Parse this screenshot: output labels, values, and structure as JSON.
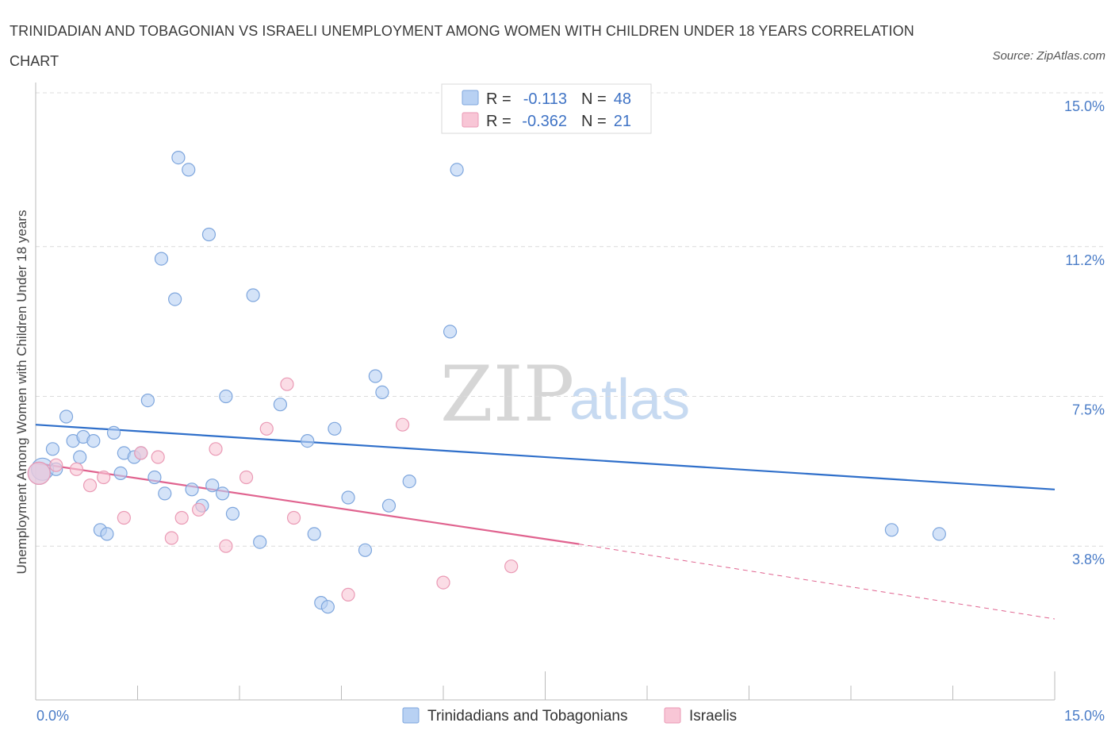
{
  "title": "TRINIDADIAN AND TOBAGONIAN VS ISRAELI UNEMPLOYMENT AMONG WOMEN WITH CHILDREN UNDER 18 YEARS CORRELATION CHART",
  "source": "Source: ZipAtlas.com",
  "watermark": {
    "zip": "ZIP",
    "atlas": "atlas"
  },
  "colors": {
    "blue_fill": "#b8d1f3",
    "blue_stroke": "#7ea6dd",
    "blue_line": "#2f6fca",
    "pink_fill": "#f8c6d6",
    "pink_stroke": "#ea9ab5",
    "pink_line": "#e0638f",
    "tick_text": "#4a7cc7"
  },
  "legend": {
    "rows": [
      {
        "r_label": "R =",
        "r_value": "-0.113",
        "n_label": "N =",
        "n_value": "48"
      },
      {
        "r_label": "R =",
        "r_value": "-0.362",
        "n_label": "N =",
        "n_value": "21"
      }
    ]
  },
  "chart_data": {
    "type": "scatter",
    "ylabel": "Unemployment Among Women with Children Under 18 years",
    "xlim": [
      0,
      15
    ],
    "ylim": [
      0,
      15
    ],
    "x_tick_labels": [
      "0.0%",
      "15.0%"
    ],
    "y_ticks": [
      {
        "value": 3.8,
        "label": "3.8%"
      },
      {
        "value": 7.5,
        "label": "7.5%"
      },
      {
        "value": 11.2,
        "label": "11.2%"
      },
      {
        "value": 15.0,
        "label": "15.0%"
      }
    ],
    "grid": true,
    "legend_position": "bottom",
    "series": [
      {
        "name": "Trinidadians and Tobagonians",
        "color": "#b8d1f3",
        "points": [
          [
            0.1,
            5.7
          ],
          [
            0.25,
            6.2
          ],
          [
            0.3,
            5.7
          ],
          [
            0.45,
            7.0
          ],
          [
            0.55,
            6.4
          ],
          [
            0.65,
            6.0
          ],
          [
            0.7,
            6.5
          ],
          [
            0.85,
            6.4
          ],
          [
            0.95,
            4.2
          ],
          [
            1.05,
            4.1
          ],
          [
            1.15,
            6.6
          ],
          [
            1.25,
            5.6
          ],
          [
            1.3,
            6.1
          ],
          [
            1.45,
            6.0
          ],
          [
            1.55,
            6.1
          ],
          [
            1.65,
            7.4
          ],
          [
            1.75,
            5.5
          ],
          [
            1.85,
            10.9
          ],
          [
            1.9,
            5.1
          ],
          [
            2.05,
            9.9
          ],
          [
            2.1,
            13.4
          ],
          [
            2.25,
            13.1
          ],
          [
            2.3,
            5.2
          ],
          [
            2.45,
            4.8
          ],
          [
            2.55,
            11.5
          ],
          [
            2.6,
            5.3
          ],
          [
            2.75,
            5.1
          ],
          [
            2.8,
            7.5
          ],
          [
            2.9,
            4.6
          ],
          [
            3.2,
            10.0
          ],
          [
            3.3,
            3.9
          ],
          [
            3.6,
            7.3
          ],
          [
            4.0,
            6.4
          ],
          [
            4.1,
            4.1
          ],
          [
            4.2,
            2.4
          ],
          [
            4.3,
            2.3
          ],
          [
            4.4,
            6.7
          ],
          [
            4.6,
            5.0
          ],
          [
            4.85,
            3.7
          ],
          [
            5.0,
            8.0
          ],
          [
            5.1,
            7.6
          ],
          [
            5.2,
            4.8
          ],
          [
            5.5,
            5.4
          ],
          [
            6.1,
            9.1
          ],
          [
            6.2,
            13.1
          ],
          [
            12.6,
            4.2
          ],
          [
            13.3,
            4.1
          ],
          [
            0.05,
            5.6
          ]
        ],
        "trend": {
          "x": [
            0,
            15
          ],
          "y": [
            6.8,
            5.2
          ]
        }
      },
      {
        "name": "Israelis",
        "color": "#f8c6d6",
        "points": [
          [
            0.05,
            5.6
          ],
          [
            0.3,
            5.8
          ],
          [
            0.6,
            5.7
          ],
          [
            0.8,
            5.3
          ],
          [
            1.0,
            5.5
          ],
          [
            1.3,
            4.5
          ],
          [
            1.55,
            6.1
          ],
          [
            1.8,
            6.0
          ],
          [
            2.0,
            4.0
          ],
          [
            2.15,
            4.5
          ],
          [
            2.4,
            4.7
          ],
          [
            2.65,
            6.2
          ],
          [
            2.8,
            3.8
          ],
          [
            3.1,
            5.5
          ],
          [
            3.4,
            6.7
          ],
          [
            3.7,
            7.8
          ],
          [
            3.8,
            4.5
          ],
          [
            4.6,
            2.6
          ],
          [
            5.4,
            6.8
          ],
          [
            6.0,
            2.9
          ],
          [
            7.0,
            3.3
          ]
        ],
        "trend": {
          "x": [
            0,
            8.0
          ],
          "y": [
            5.85,
            3.85
          ]
        },
        "trend_extended": {
          "x": [
            8.0,
            15
          ],
          "y": [
            3.85,
            2.0
          ]
        }
      }
    ]
  }
}
